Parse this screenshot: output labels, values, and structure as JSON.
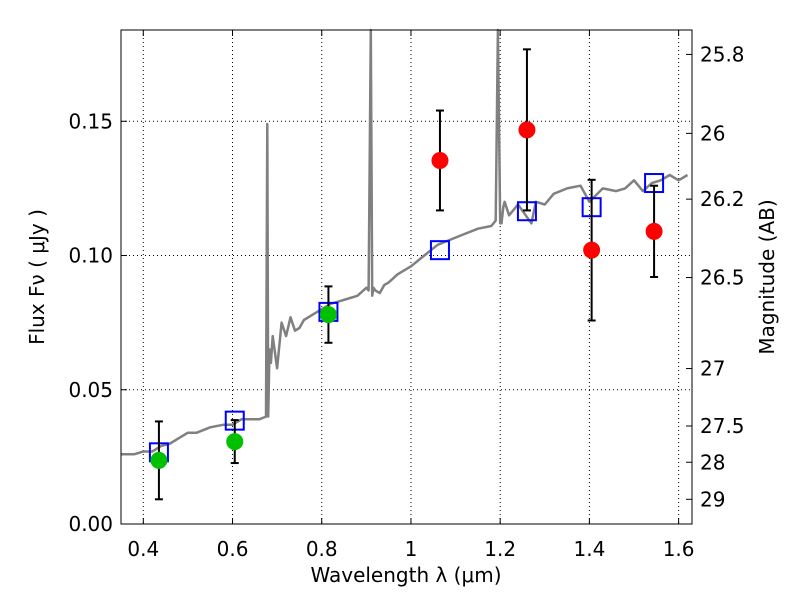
{
  "chart_data": {
    "type": "scatter",
    "title": "",
    "xlabel": "Wavelength  λ (μm)",
    "ylabel": "Flux  Fν  ( μJy )",
    "y2label": "Magnitude (AB)",
    "xlim": [
      0.35,
      1.63
    ],
    "ylim": [
      0.0,
      0.184
    ],
    "grid": true,
    "x_ticks": [
      0.4,
      0.6,
      0.8,
      1.0,
      1.2,
      1.4,
      1.6
    ],
    "x_tick_labels": [
      "0.4",
      "0.6",
      "0.8",
      "1",
      "1.2",
      "1.4",
      "1.6"
    ],
    "y_ticks": [
      0.0,
      0.05,
      0.1,
      0.15
    ],
    "y_tick_labels": [
      "0.00",
      "0.05",
      "0.10",
      "0.15"
    ],
    "y2_ticks": [
      {
        "label": "25.8",
        "flux": 0.1749
      },
      {
        "label": "26",
        "flux": 0.1455
      },
      {
        "label": "26.2",
        "flux": 0.121
      },
      {
        "label": "26.5",
        "flux": 0.0918
      },
      {
        "label": "27",
        "flux": 0.0579
      },
      {
        "label": "27.5",
        "flux": 0.0365
      },
      {
        "label": "28",
        "flux": 0.023
      },
      {
        "label": "29",
        "flux": 0.0092
      }
    ],
    "series": [
      {
        "marker": "circle-green",
        "color": "#00c000",
        "x": [
          0.435,
          0.605,
          0.815
        ],
        "y": [
          0.0237,
          0.0307,
          0.078
        ],
        "yerr": [
          0.0145,
          0.008,
          0.0105
        ]
      },
      {
        "marker": "circle-red",
        "color": "#ff0000",
        "x": [
          1.065,
          1.26,
          1.405,
          1.545
        ],
        "y": [
          0.1354,
          0.1468,
          0.102,
          0.109
        ],
        "yerr": [
          0.0186,
          0.03,
          0.0262,
          0.017
        ]
      },
      {
        "marker": "square-blue",
        "color": "#0000ff",
        "x": [
          0.435,
          0.605,
          0.815,
          1.065,
          1.26,
          1.405,
          1.545
        ],
        "y": [
          0.0267,
          0.0385,
          0.079,
          0.102,
          0.1165,
          0.118,
          0.127
        ]
      },
      {
        "marker": "line-spectrum",
        "color": "#808080",
        "x": [
          0.35,
          0.38,
          0.4,
          0.42,
          0.44,
          0.46,
          0.48,
          0.5,
          0.52,
          0.55,
          0.58,
          0.6,
          0.62,
          0.64,
          0.66,
          0.675,
          0.678,
          0.68,
          0.683,
          0.686,
          0.69,
          0.7,
          0.71,
          0.72,
          0.73,
          0.74,
          0.75,
          0.76,
          0.78,
          0.8,
          0.82,
          0.84,
          0.86,
          0.88,
          0.9,
          0.905,
          0.91,
          0.913,
          0.916,
          0.92,
          0.93,
          0.94,
          0.95,
          0.97,
          1.0,
          1.03,
          1.06,
          1.09,
          1.12,
          1.15,
          1.18,
          1.19,
          1.195,
          1.2,
          1.203,
          1.207,
          1.21,
          1.22,
          1.24,
          1.27,
          1.28,
          1.3,
          1.32,
          1.35,
          1.38,
          1.4,
          1.43,
          1.46,
          1.48,
          1.5,
          1.52,
          1.54,
          1.56,
          1.58,
          1.6,
          1.62
        ],
        "y": [
          0.026,
          0.026,
          0.027,
          0.027,
          0.029,
          0.03,
          0.032,
          0.034,
          0.034,
          0.036,
          0.037,
          0.037,
          0.039,
          0.039,
          0.039,
          0.04,
          0.149,
          0.04,
          0.065,
          0.06,
          0.07,
          0.058,
          0.075,
          0.07,
          0.077,
          0.072,
          0.073,
          0.076,
          0.078,
          0.08,
          0.082,
          0.083,
          0.084,
          0.085,
          0.088,
          0.087,
          0.184,
          0.085,
          0.088,
          0.087,
          0.086,
          0.089,
          0.09,
          0.093,
          0.096,
          0.1,
          0.104,
          0.106,
          0.108,
          0.11,
          0.111,
          0.113,
          0.184,
          0.112,
          0.112,
          0.118,
          0.12,
          0.115,
          0.119,
          0.112,
          0.12,
          0.119,
          0.123,
          0.125,
          0.126,
          0.12,
          0.125,
          0.124,
          0.125,
          0.128,
          0.124,
          0.127,
          0.128,
          0.13,
          0.128,
          0.13
        ]
      }
    ]
  }
}
